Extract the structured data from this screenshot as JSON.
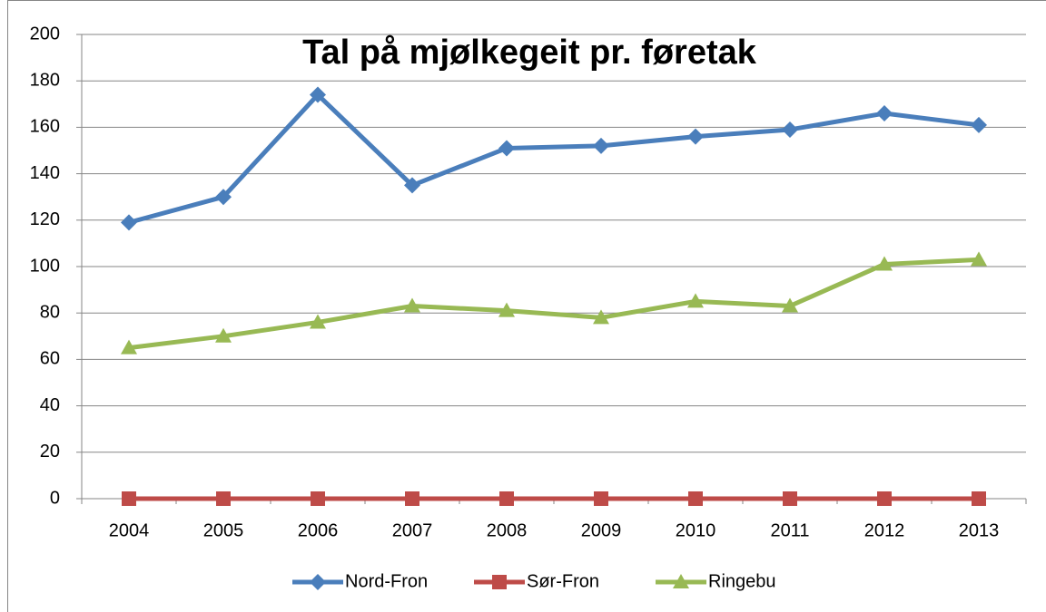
{
  "chart_data": {
    "type": "line",
    "title": "Tal på mjølkegeit pr. føretak",
    "categories": [
      "2004",
      "2005",
      "2006",
      "2007",
      "2008",
      "2009",
      "2010",
      "2011",
      "2012",
      "2013"
    ],
    "series": [
      {
        "name": "Nord-Fron",
        "color": "#4a7ebb",
        "marker": "diamond",
        "values": [
          119,
          130,
          174,
          135,
          151,
          152,
          156,
          159,
          166,
          161
        ]
      },
      {
        "name": "Sør-Fron",
        "color": "#be4b48",
        "marker": "square",
        "values": [
          0,
          0,
          0,
          0,
          0,
          0,
          0,
          0,
          0,
          0
        ]
      },
      {
        "name": "Ringebu",
        "color": "#98b954",
        "marker": "triangle",
        "values": [
          65,
          70,
          76,
          83,
          81,
          78,
          85,
          83,
          101,
          103
        ]
      }
    ],
    "ylim": [
      0,
      200
    ],
    "yticks": [
      0,
      20,
      40,
      60,
      80,
      100,
      120,
      140,
      160,
      180,
      200
    ],
    "grid": true,
    "legend": "bottom"
  }
}
